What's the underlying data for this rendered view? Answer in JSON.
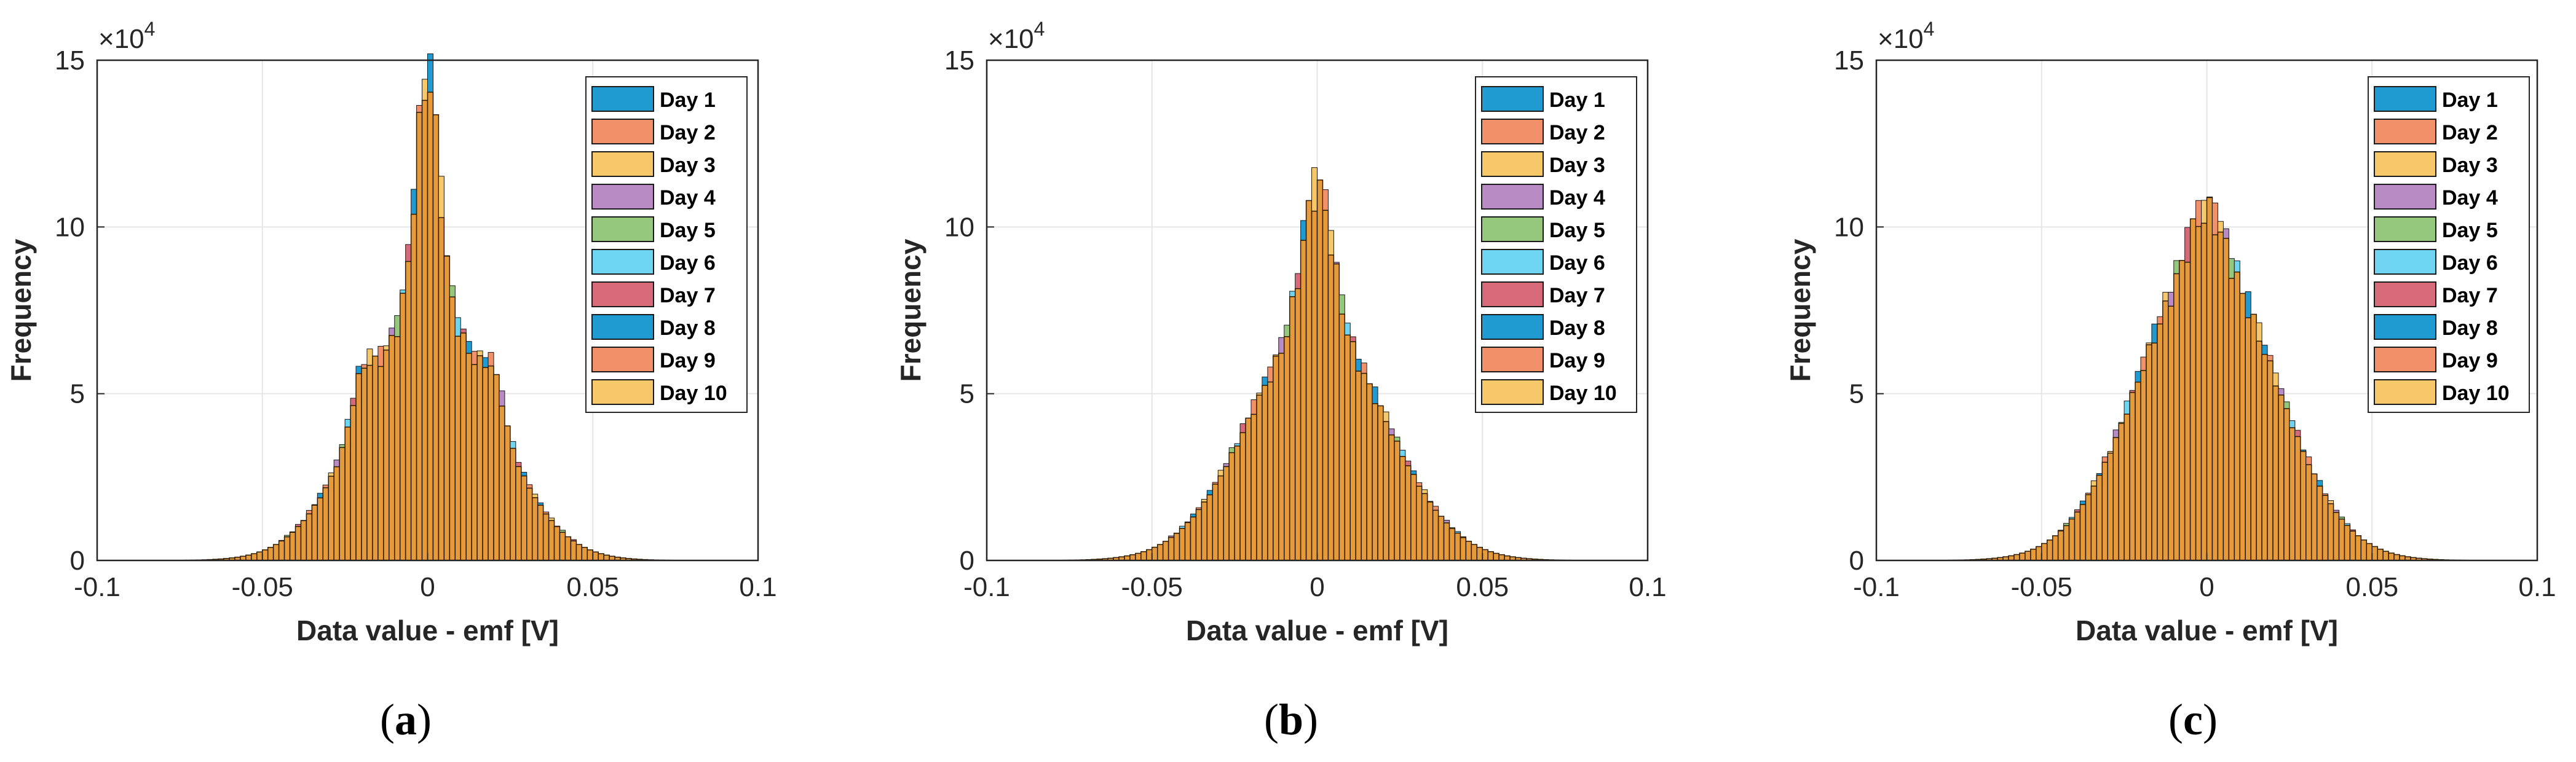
{
  "colors": {
    "series": [
      "#1f9bd2",
      "#f2906a",
      "#f6c86a",
      "#b98bc4",
      "#95c77d",
      "#6fd4f2",
      "#d66a79",
      "#1f9bd2",
      "#f2906a",
      "#f6c86a"
    ],
    "dominant_bar": "#e59a3b",
    "axis": "#262626",
    "grid": "#e6e6e6"
  },
  "chart_data": [
    {
      "type": "histogram",
      "caption_label": "a",
      "xlabel": "Data value - emf [V]",
      "ylabel": "Frequency",
      "y_exponent": "×10",
      "y_exponent_power": "4",
      "xlim": [
        -0.1,
        0.1
      ],
      "ylim": [
        0,
        150000
      ],
      "x_ticks": [
        "-0.1",
        "-0.05",
        "0",
        "0.05",
        "0.1"
      ],
      "y_ticks": [
        "0",
        "5",
        "10",
        "15"
      ],
      "legend": [
        "Day 1",
        "Day 2",
        "Day 3",
        "Day 4",
        "Day 5",
        "Day 6",
        "Day 7",
        "Day 8",
        "Day 9",
        "Day 10"
      ],
      "legend_position": "top-right",
      "profile": {
        "sigma": 0.0195,
        "base_peak": 76000,
        "spike_amp": 68000,
        "spike_width": 0.0035,
        "shoulder_amp": 12000,
        "shoulder_pos": 0.02,
        "shoulder_width": 0.003
      },
      "bin_count": 120
    },
    {
      "type": "histogram",
      "caption_label": "b",
      "xlabel": "Data value - emf [V]",
      "ylabel": "Frequency",
      "y_exponent": "×10",
      "y_exponent_power": "4",
      "xlim": [
        -0.1,
        0.1
      ],
      "ylim": [
        0,
        150000
      ],
      "x_ticks": [
        "-0.1",
        "-0.05",
        "0",
        "0.05",
        "0.1"
      ],
      "y_ticks": [
        "0",
        "5",
        "10",
        "15"
      ],
      "legend": [
        "Day 1",
        "Day 2",
        "Day 3",
        "Day 4",
        "Day 5",
        "Day 6",
        "Day 7",
        "Day 8",
        "Day 9",
        "Day 10"
      ],
      "legend_position": "top-right",
      "profile": {
        "sigma": 0.0205,
        "base_peak": 70000,
        "spike_amp": 41000,
        "spike_width": 0.0045,
        "shoulder_amp": 0,
        "shoulder_pos": 0.02,
        "shoulder_width": 0.003
      },
      "bin_count": 120
    },
    {
      "type": "histogram",
      "caption_label": "c",
      "xlabel": "Data value - emf [V]",
      "ylabel": "Frequency",
      "y_exponent": "×10",
      "y_exponent_power": "4",
      "xlim": [
        -0.1,
        0.1
      ],
      "ylim": [
        0,
        150000
      ],
      "x_ticks": [
        "-0.1",
        "-0.05",
        "0",
        "0.05",
        "0.1"
      ],
      "y_ticks": [
        "0",
        "5",
        "10",
        "15"
      ],
      "legend": [
        "Day 1",
        "Day 2",
        "Day 3",
        "Day 4",
        "Day 5",
        "Day 6",
        "Day 7",
        "Day 8",
        "Day 9",
        "Day 10"
      ],
      "legend_position": "top-right",
      "profile": {
        "sigma": 0.0205,
        "base_peak": 90000,
        "spike_amp": 14000,
        "spike_width": 0.005,
        "shoulder_amp": 0,
        "shoulder_pos": 0.02,
        "shoulder_width": 0.003
      },
      "bin_count": 120
    }
  ]
}
